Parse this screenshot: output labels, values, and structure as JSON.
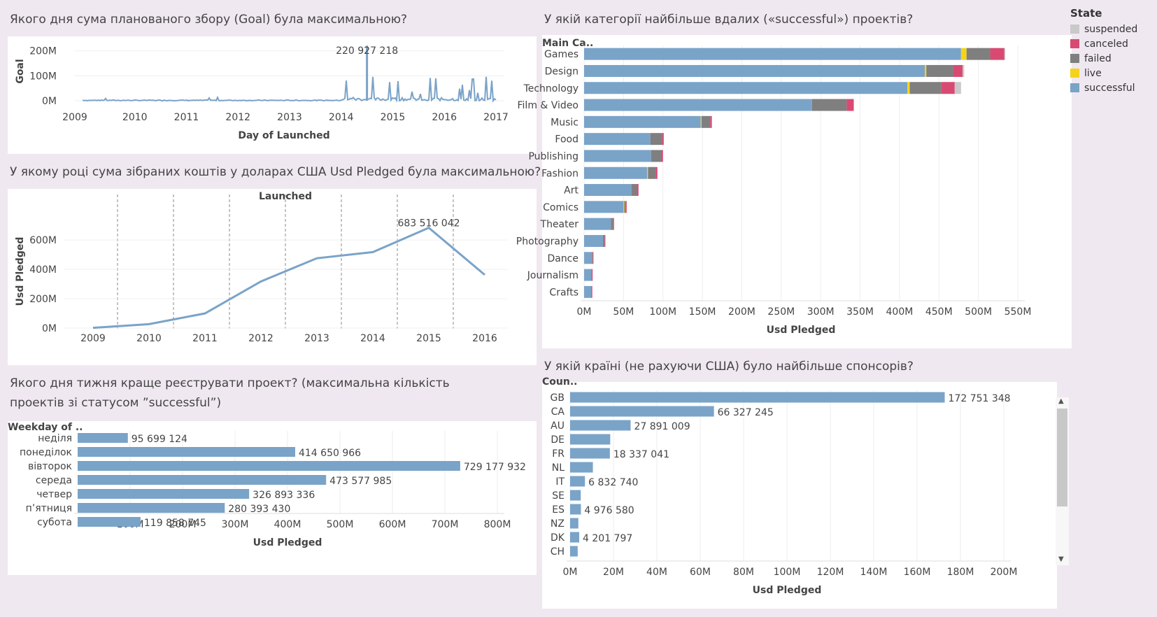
{
  "titles": {
    "goal": "Якого дня сума планованого збору (Goal) була максимальною?",
    "pledged_year": "У якому році сума зібраних коштів у доларах США Usd Pledged була максимальною?",
    "weekday": "Якого дня тижня краще реєструвати проект? (максимальна кількість проектів зі статусом ”successful”)",
    "category": "У якій категорії найбільше вдалих («successful») проектів?",
    "country": "У якій країні (не рахуючи США) було найбільше спонсорів?"
  },
  "legend": {
    "title": "State",
    "items": [
      {
        "label": "suspended",
        "color": "#c9c9c9"
      },
      {
        "label": "canceled",
        "color": "#d94a73"
      },
      {
        "label": "failed",
        "color": "#7f7f7f"
      },
      {
        "label": "live",
        "color": "#f5d31b"
      },
      {
        "label": "successful",
        "color": "#7aa3c8"
      }
    ]
  },
  "colors": {
    "bar": "#7aa3c8",
    "axis": "#444444",
    "grid": "#eeeeee"
  },
  "chart_data": [
    {
      "id": "goal",
      "type": "line",
      "xlabel": "Day of Launched",
      "ylabel": "Goal",
      "x_ticks": [
        "2009",
        "2010",
        "2011",
        "2012",
        "2013",
        "2014",
        "2015",
        "2016",
        "2017"
      ],
      "y_ticks": [
        "0M",
        "100M",
        "200M"
      ],
      "ylim": [
        0,
        230000000
      ],
      "max_label": "220 927 218",
      "max_value": 220927218,
      "max_date": "2014-07"
    },
    {
      "id": "pledged_year",
      "type": "line",
      "header": "Launched",
      "ylabel": "Usd Pledged",
      "categories": [
        "2009",
        "2010",
        "2011",
        "2012",
        "2013",
        "2014",
        "2015",
        "2016"
      ],
      "values": [
        2000000,
        27000000,
        100000000,
        318000000,
        476000000,
        518000000,
        683516042,
        363000000
      ],
      "y_ticks": [
        "0M",
        "200M",
        "400M",
        "600M"
      ],
      "ylim": [
        0,
        720000000
      ],
      "max_label": "683 516 042"
    },
    {
      "id": "weekday",
      "type": "bar",
      "header": "Weekday of ..",
      "xlabel": "Usd Pledged",
      "categories": [
        "неділя",
        "понеділок",
        "вівторок",
        "середа",
        "четвер",
        "п’ятниця",
        "субота"
      ],
      "values": [
        95699124,
        414650966,
        729177932,
        473577985,
        326893336,
        280393430,
        119858745
      ],
      "labels": [
        "95 699 124",
        "414 650 966",
        "729 177 932",
        "473 577 985",
        "326 893 336",
        "280 393 430",
        "119 858 745"
      ],
      "x_ticks": [
        "100M",
        "200M",
        "300M",
        "400M",
        "500M",
        "600M",
        "700M",
        "800M"
      ],
      "xlim": [
        0,
        800000000
      ]
    },
    {
      "id": "category",
      "type": "bar",
      "stacked": true,
      "header": "Main Ca..",
      "xlabel": "Usd Pledged",
      "categories": [
        "Games",
        "Design",
        "Technology",
        "Film & Video",
        "Music",
        "Food",
        "Publishing",
        "Fashion",
        "Art",
        "Comics",
        "Theater",
        "Photography",
        "Dance",
        "Journalism",
        "Crafts"
      ],
      "series": [
        {
          "name": "successful",
          "values": [
            478,
            432,
            410,
            289,
            148,
            84,
            85,
            80,
            60,
            50,
            34,
            24,
            10,
            9,
            9
          ]
        },
        {
          "name": "live",
          "values": [
            7,
            2,
            3,
            0,
            1,
            0,
            0,
            1,
            0,
            1,
            0,
            0,
            0,
            0,
            0
          ]
        },
        {
          "name": "failed",
          "values": [
            30,
            34,
            40,
            44,
            11,
            15,
            13,
            10,
            7,
            2,
            3,
            2,
            1,
            1,
            0.5
          ]
        },
        {
          "name": "canceled",
          "values": [
            18,
            12,
            17,
            9,
            2,
            2,
            2,
            2,
            2,
            1,
            1,
            1,
            0.3,
            0.3,
            0.5
          ]
        },
        {
          "name": "suspended",
          "values": [
            1,
            2,
            8,
            0,
            0,
            0,
            0,
            0,
            0,
            0,
            0,
            0,
            0,
            0,
            0
          ]
        }
      ],
      "value_unit": "M",
      "x_ticks": [
        "0M",
        "50M",
        "100M",
        "150M",
        "200M",
        "250M",
        "300M",
        "350M",
        "400M",
        "450M",
        "500M",
        "550M"
      ],
      "xlim": [
        0,
        550
      ]
    },
    {
      "id": "country",
      "type": "bar",
      "header": "Coun..",
      "xlabel": "Usd Pledged",
      "categories": [
        "GB",
        "CA",
        "AU",
        "DE",
        "FR",
        "NL",
        "IT",
        "SE",
        "ES",
        "NZ",
        "DK",
        "CH"
      ],
      "values": [
        172751348,
        66327245,
        27891009,
        18500000,
        18337041,
        10500000,
        6832740,
        4900000,
        4976580,
        3800000,
        4201797,
        3500000
      ],
      "labels": [
        "172 751 348",
        "66 327 245",
        "27 891 009",
        "",
        "18 337 041",
        "",
        "6 832 740",
        "",
        "4 976 580",
        "",
        "4 201 797",
        ""
      ],
      "x_ticks": [
        "0M",
        "20M",
        "40M",
        "60M",
        "80M",
        "100M",
        "120M",
        "140M",
        "160M",
        "180M",
        "200M"
      ],
      "xlim": [
        0,
        200000000
      ]
    }
  ]
}
